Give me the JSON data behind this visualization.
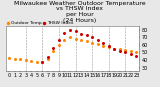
{
  "title": "Milwaukee Weather Outdoor Temperature\nvs THSW Index\nper Hour\n(24 Hours)",
  "background_color": "#e8e8e8",
  "plot_bg_color": "#ffffff",
  "grid_color": "#999999",
  "xlim": [
    -0.5,
    23.5
  ],
  "ylim": [
    25,
    85
  ],
  "yticks": [
    30,
    40,
    50,
    60,
    70,
    80
  ],
  "ytick_labels": [
    "30",
    "40",
    "50",
    "60",
    "70",
    "80"
  ],
  "xticks": [
    0,
    1,
    2,
    3,
    4,
    5,
    6,
    7,
    8,
    9,
    10,
    11,
    12,
    13,
    14,
    15,
    16,
    17,
    18,
    19,
    20,
    21,
    22,
    23
  ],
  "xtick_labels": [
    "0",
    "1",
    "2",
    "3",
    "4",
    "5",
    "6",
    "7",
    "8",
    "9",
    "10",
    "11",
    "12",
    "13",
    "14",
    "15",
    "16",
    "17",
    "18",
    "19",
    "20",
    "21",
    "22",
    "23"
  ],
  "vgrid_positions": [
    3,
    6,
    9,
    12,
    15,
    18,
    21
  ],
  "temp_color": "#ff8800",
  "thsw_color": "#cc0000",
  "black_color": "#000000",
  "temp_x": [
    0,
    1,
    2,
    3,
    4,
    5,
    6,
    7,
    8,
    9,
    10,
    11,
    12,
    13,
    14,
    15,
    16,
    17,
    18,
    19,
    20,
    21,
    22,
    23
  ],
  "temp_y": [
    43,
    42,
    41,
    40,
    39,
    38,
    38,
    42,
    52,
    60,
    67,
    70,
    68,
    66,
    65,
    63,
    61,
    59,
    57,
    55,
    54,
    53,
    52,
    51
  ],
  "thsw_x": [
    6,
    7,
    8,
    9,
    10,
    11,
    12,
    13,
    14,
    15,
    16,
    17,
    18,
    19,
    20,
    21,
    22,
    23
  ],
  "thsw_y": [
    38,
    44,
    56,
    66,
    76,
    80,
    78,
    75,
    73,
    70,
    66,
    62,
    58,
    55,
    52,
    50,
    48,
    46
  ],
  "legend_labels": [
    "Outdoor Temp",
    "THSW Index"
  ],
  "legend_colors": [
    "#ff8800",
    "#cc0000"
  ],
  "title_fontsize": 4.5,
  "tick_fontsize": 3.5,
  "legend_fontsize": 3.2,
  "marker_size": 1.2,
  "title_bg_color": "#c0c0c0"
}
